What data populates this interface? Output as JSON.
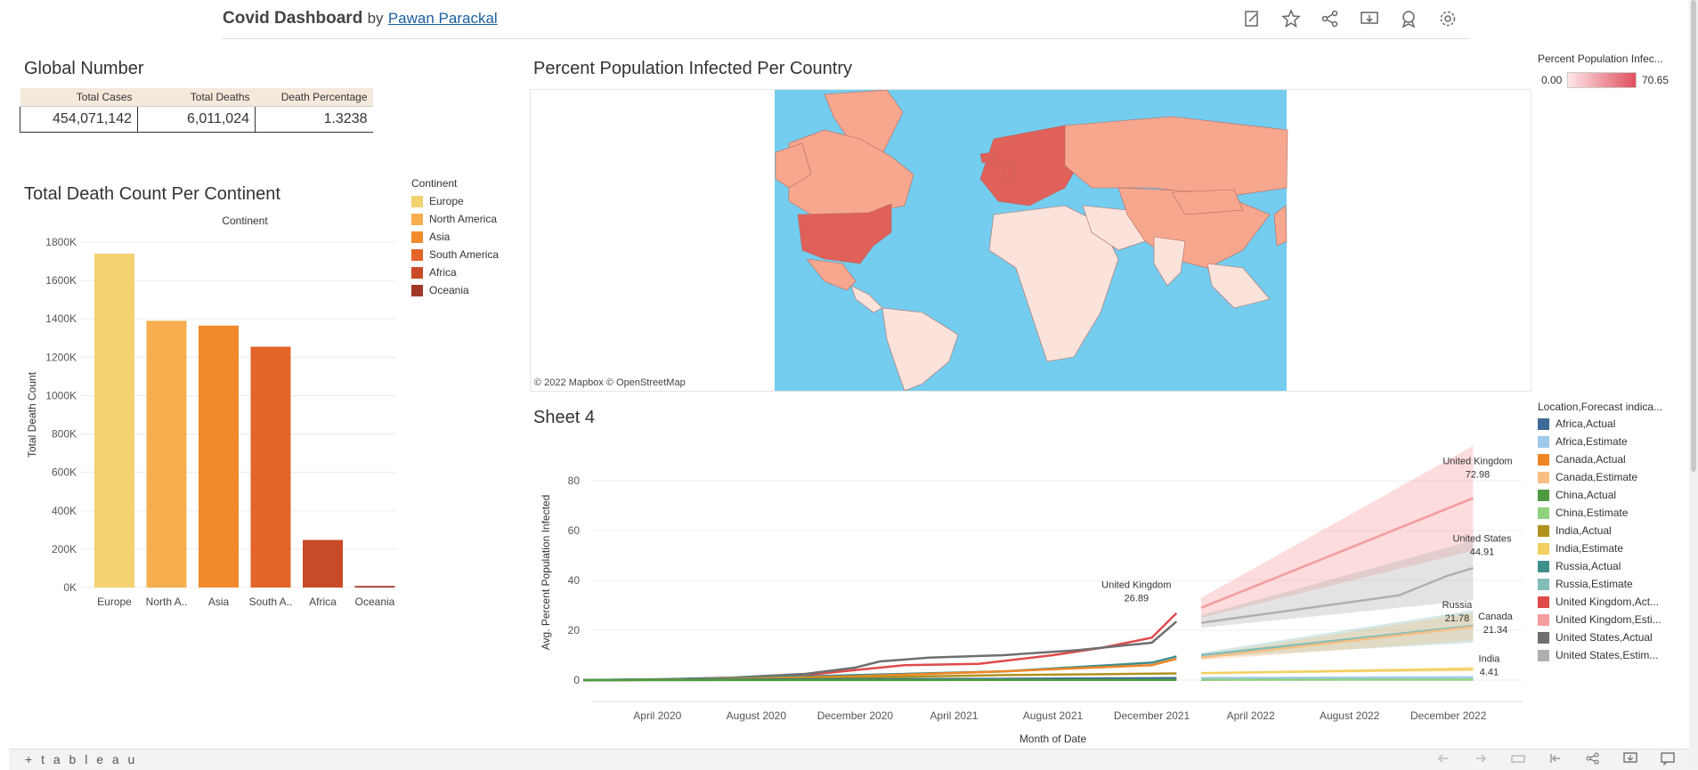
{
  "header": {
    "title": "Covid Dashboard",
    "by": "by",
    "author": "Pawan Parackal",
    "icons": [
      "edit-icon",
      "star-icon",
      "share-icon",
      "download-icon",
      "badge-icon",
      "gear-icon"
    ]
  },
  "global_number": {
    "title": "Global Number",
    "columns": [
      "Total Cases",
      "Total Deaths",
      "Death Percentage"
    ],
    "values": [
      "454,071,142",
      "6,011,024",
      "1.3238"
    ]
  },
  "death_chart": {
    "title": "Total Death Count Per Continent",
    "header": "Continent",
    "legend_title": "Continent"
  },
  "map": {
    "title": "Percent Population Infected Per Country",
    "attribution": "© 2022 Mapbox  © OpenStreetMap",
    "legend_title": "Percent Population Infec...",
    "legend_min": "0.00",
    "legend_max": "70.65",
    "colors": {
      "water": "#74cdef",
      "land_low": "#fbe3dc",
      "land_mid": "#f6a78e",
      "land_high": "#e0605a",
      "map_bg": "#ffffff"
    }
  },
  "sheet4": {
    "title": "Sheet 4",
    "legend_title": "Location,Forecast indica...",
    "legend": [
      {
        "label": "Africa,Actual",
        "color": "#3e6a97"
      },
      {
        "label": "Africa,Estimate",
        "color": "#9ec9e8"
      },
      {
        "label": "Canada,Actual",
        "color": "#ef8626"
      },
      {
        "label": "Canada,Estimate",
        "color": "#f8bf84"
      },
      {
        "label": "China,Actual",
        "color": "#4e9a41"
      },
      {
        "label": "China,Estimate",
        "color": "#8fd17d"
      },
      {
        "label": "India,Actual",
        "color": "#b0921e"
      },
      {
        "label": "India,Estimate",
        "color": "#f2cf5e"
      },
      {
        "label": "Russia,Actual",
        "color": "#3f8e8a"
      },
      {
        "label": "Russia,Estimate",
        "color": "#83bdb7"
      },
      {
        "label": "United Kingdom,Act...",
        "color": "#e04a4a"
      },
      {
        "label": "United Kingdom,Esti...",
        "color": "#f59c9c"
      },
      {
        "label": "United States,Actual",
        "color": "#6f6f6f"
      },
      {
        "label": "United States,Estim...",
        "color": "#b2aeae"
      }
    ]
  },
  "chart_data": [
    {
      "type": "bar",
      "title": "Total Death Count Per Continent",
      "xlabel": "Continent",
      "ylabel": "Total Death Count",
      "categories": [
        "Europe",
        "North A..",
        "Asia",
        "South A..",
        "Africa",
        "Oceania"
      ],
      "values": [
        1740000,
        1390000,
        1365000,
        1255000,
        248000,
        8000
      ],
      "colors": [
        "#f3d270",
        "#f6ae4e",
        "#f08a2d",
        "#e4652a",
        "#c94a27",
        "#a0392a"
      ],
      "legend": [
        "Europe",
        "North America",
        "Asia",
        "South America",
        "Africa",
        "Oceania"
      ],
      "yticks": [
        "0K",
        "200K",
        "400K",
        "600K",
        "800K",
        "1000K",
        "1200K",
        "1400K",
        "1600K",
        "1800K"
      ],
      "ylim": [
        0,
        1800000
      ],
      "grid": true,
      "legend_position": "right"
    },
    {
      "type": "line",
      "title": "Sheet 4",
      "xlabel": "Month of Date",
      "ylabel": "Avg. Percent Population Infected",
      "xticks": [
        "April 2020",
        "August 2020",
        "December 2020",
        "April 2021",
        "August 2021",
        "December 2021",
        "April 2022",
        "August 2022",
        "December 2022"
      ],
      "yticks": [
        "0",
        "20",
        "40",
        "60",
        "80"
      ],
      "xlim": [
        "2020-01",
        "2023-03"
      ],
      "ylim": [
        -5,
        95
      ],
      "actual_end": "2022-01",
      "forecast_start": "2022-02",
      "series": [
        {
          "name": "United Kingdom",
          "color": "#e04a4a",
          "forecast_color": "#f59c9c",
          "actual": [
            [
              "2020-01",
              0
            ],
            [
              "2020-03",
              0
            ],
            [
              "2020-06",
              0.5
            ],
            [
              "2020-09",
              1
            ],
            [
              "2020-12",
              4
            ],
            [
              "2021-02",
              6
            ],
            [
              "2021-05",
              6.5
            ],
            [
              "2021-08",
              10
            ],
            [
              "2021-10",
              13
            ],
            [
              "2021-12",
              17
            ],
            [
              "2022-01",
              26.89
            ]
          ],
          "forecast": [
            [
              "2022-02",
              29
            ],
            [
              "2023-01",
              72.98
            ]
          ],
          "band": [
            [
              "2022-02",
              25,
              33
            ],
            [
              "2023-01",
              52,
              94
            ]
          ],
          "labels": [
            {
              "at": "2022-01",
              "text": "United Kingdom",
              "value": "26.89"
            },
            {
              "at": "2023-01",
              "text": "United Kingdom",
              "value": "72.98"
            }
          ]
        },
        {
          "name": "United States",
          "color": "#6f6f6f",
          "forecast_color": "#b2aeae",
          "actual": [
            [
              "2020-01",
              0
            ],
            [
              "2020-04",
              0.3
            ],
            [
              "2020-07",
              1
            ],
            [
              "2020-10",
              2.5
            ],
            [
              "2020-12",
              5
            ],
            [
              "2021-01",
              7.5
            ],
            [
              "2021-03",
              9
            ],
            [
              "2021-06",
              10
            ],
            [
              "2021-09",
              12
            ],
            [
              "2021-11",
              14
            ],
            [
              "2021-12",
              15
            ],
            [
              "2022-01",
              23.5
            ]
          ],
          "forecast": [
            [
              "2022-02",
              23
            ],
            [
              "2022-10",
              34
            ],
            [
              "2022-12",
              42
            ],
            [
              "2023-01",
              44.91
            ]
          ],
          "band": [
            [
              "2022-02",
              21,
              26
            ],
            [
              "2023-01",
              32,
              56
            ]
          ],
          "labels": [
            {
              "at": "2023-01",
              "text": "United States",
              "value": "44.91"
            }
          ]
        },
        {
          "name": "Russia",
          "color": "#3f8e8a",
          "forecast_color": "#83bdb7",
          "actual": [
            [
              "2020-01",
              0
            ],
            [
              "2020-06",
              0.5
            ],
            [
              "2020-12",
              2
            ],
            [
              "2021-06",
              3.5
            ],
            [
              "2021-12",
              7
            ],
            [
              "2022-01",
              9.5
            ]
          ],
          "forecast": [
            [
              "2022-02",
              10
            ],
            [
              "2023-01",
              21.78
            ]
          ],
          "band": [
            [
              "2022-02",
              9,
              11
            ],
            [
              "2023-01",
              15,
              28
            ]
          ],
          "labels": [
            {
              "at": "2023-01",
              "text": "Russia",
              "value": "21.78"
            }
          ]
        },
        {
          "name": "Canada",
          "color": "#ef8626",
          "forecast_color": "#f8bf84",
          "actual": [
            [
              "2020-01",
              0
            ],
            [
              "2020-06",
              0.3
            ],
            [
              "2020-12",
              1.5
            ],
            [
              "2021-06",
              3.5
            ],
            [
              "2021-12",
              6
            ],
            [
              "2022-01",
              8.5
            ]
          ],
          "forecast": [
            [
              "2022-02",
              9
            ],
            [
              "2023-01",
              21.34
            ]
          ],
          "band": [
            [
              "2022-02",
              8,
              10
            ],
            [
              "2023-01",
              16,
              27
            ]
          ],
          "labels": [
            {
              "at": "2023-01",
              "text": "Canada",
              "value": "21.34"
            }
          ]
        },
        {
          "name": "India",
          "color": "#b0921e",
          "forecast_color": "#f2cf5e",
          "actual": [
            [
              "2020-01",
              0
            ],
            [
              "2020-09",
              0.5
            ],
            [
              "2021-06",
              2
            ],
            [
              "2022-01",
              2.7
            ]
          ],
          "forecast": [
            [
              "2022-02",
              2.8
            ],
            [
              "2023-01",
              4.41
            ]
          ],
          "band": [
            [
              "2022-02",
              2.5,
              3
            ],
            [
              "2023-01",
              3.5,
              5.5
            ]
          ],
          "labels": [
            {
              "at": "2023-01",
              "text": "India",
              "value": "4.41"
            }
          ]
        },
        {
          "name": "Africa",
          "color": "#3e6a97",
          "forecast_color": "#9ec9e8",
          "actual": [
            [
              "2020-01",
              0
            ],
            [
              "2021-06",
              0.5
            ],
            [
              "2022-01",
              0.8
            ]
          ],
          "forecast": [
            [
              "2022-02",
              0.8
            ],
            [
              "2023-01",
              1.1
            ]
          ],
          "band": [],
          "labels": []
        },
        {
          "name": "China",
          "color": "#4e9a41",
          "forecast_color": "#8fd17d",
          "actual": [
            [
              "2020-01",
              0
            ],
            [
              "2022-01",
              0.1
            ]
          ],
          "forecast": [
            [
              "2022-02",
              0.1
            ],
            [
              "2023-01",
              0.2
            ]
          ],
          "band": [],
          "labels": []
        }
      ]
    }
  ],
  "footer": {
    "brand": "+ t a b l e a u"
  }
}
